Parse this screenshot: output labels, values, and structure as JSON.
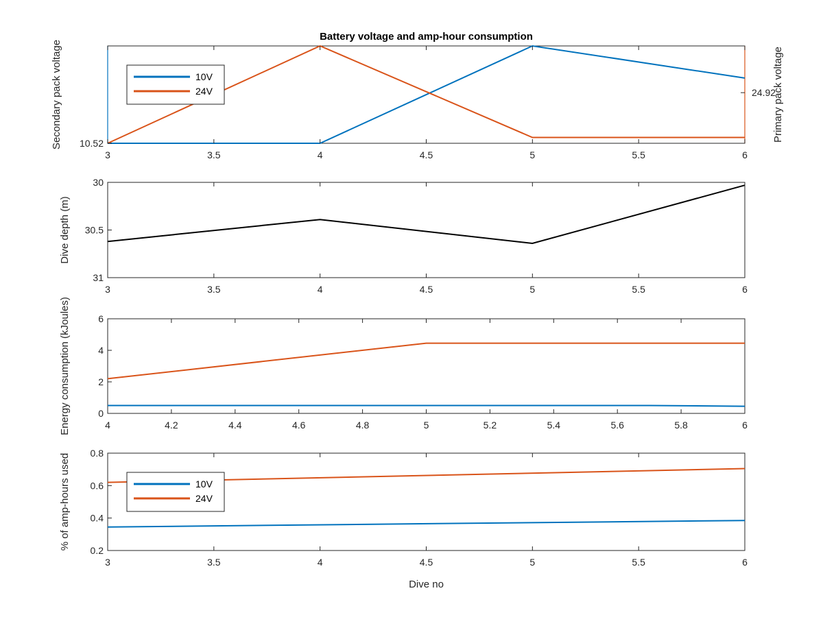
{
  "chart_data": [
    {
      "type": "line",
      "title": "Battery voltage and amp-hour consumption",
      "ylabel_left": "Secondary pack voltage",
      "ylabel_right": "Primary pack voltage",
      "xlim": [
        3,
        6
      ],
      "xticks": [
        3,
        3.5,
        4,
        4.5,
        5,
        5.5,
        6
      ],
      "xtick_labels": [
        "3",
        "3.5",
        "4",
        "4.5",
        "5",
        "5.5",
        "6"
      ],
      "ylim_left": [
        0,
        1
      ],
      "yticks_left": [
        0
      ],
      "ytick_labels_left": [
        "10.52"
      ],
      "ylim_right": [
        0,
        1
      ],
      "yticks_right": [
        0.52
      ],
      "ytick_labels_right": [
        "24.92"
      ],
      "grid": true,
      "legend": {
        "placement": "top-left",
        "entries": [
          "10V",
          "24V"
        ]
      },
      "colors": {
        "left_axis": "#0072BD",
        "right_axis": "#D95319"
      },
      "series": [
        {
          "name": "10V",
          "axis": "left",
          "color": "#0072BD",
          "x": [
            3,
            4,
            5,
            6
          ],
          "y": [
            0,
            0,
            1,
            0.67
          ]
        },
        {
          "name": "24V",
          "axis": "right",
          "color": "#D95319",
          "x": [
            3,
            4,
            5,
            6
          ],
          "y": [
            0,
            1,
            0.06,
            0.06
          ]
        }
      ]
    },
    {
      "type": "line",
      "ylabel": "Dive depth (m)",
      "xlim": [
        3,
        6
      ],
      "xticks": [
        3,
        3.5,
        4,
        4.5,
        5,
        5.5,
        6
      ],
      "xtick_labels": [
        "3",
        "3.5",
        "4",
        "4.5",
        "5",
        "5.5",
        "6"
      ],
      "ylim": [
        30,
        31
      ],
      "y_reversed": true,
      "yticks": [
        30,
        30.5,
        31
      ],
      "ytick_labels": [
        "30",
        "30.5",
        "31"
      ],
      "grid": true,
      "series": [
        {
          "color": "#000000",
          "x": [
            3,
            4,
            5,
            6
          ],
          "y": [
            30.62,
            30.39,
            30.64,
            30.03
          ]
        }
      ]
    },
    {
      "type": "line",
      "ylabel": "Energy consumption (kJoules)",
      "xlim": [
        4,
        6
      ],
      "xticks": [
        4,
        4.2,
        4.4,
        4.6,
        4.8,
        5,
        5.2,
        5.4,
        5.6,
        5.8,
        6
      ],
      "xtick_labels": [
        "4",
        "4.2",
        "4.4",
        "4.6",
        "4.8",
        "5",
        "5.2",
        "5.4",
        "5.6",
        "5.8",
        "6"
      ],
      "ylim": [
        0,
        6
      ],
      "yticks": [
        0,
        2,
        4,
        6
      ],
      "ytick_labels": [
        "0",
        "2",
        "4",
        "6"
      ],
      "grid": true,
      "series": [
        {
          "color": "#D95319",
          "x": [
            4,
            5,
            6
          ],
          "y": [
            2.2,
            4.45,
            4.45
          ]
        },
        {
          "color": "#0072BD",
          "x": [
            4,
            5.7,
            6
          ],
          "y": [
            0.5,
            0.5,
            0.45
          ]
        }
      ]
    },
    {
      "type": "line",
      "ylabel": "% of amp-hours used",
      "xlabel": "Dive no",
      "xlim": [
        3,
        6
      ],
      "xticks": [
        3,
        3.5,
        4,
        4.5,
        5,
        5.5,
        6
      ],
      "xtick_labels": [
        "3",
        "3.5",
        "4",
        "4.5",
        "5",
        "5.5",
        "6"
      ],
      "ylim": [
        0.2,
        0.8
      ],
      "yticks": [
        0.2,
        0.4,
        0.6,
        0.8
      ],
      "ytick_labels": [
        "0.2",
        "0.4",
        "0.6",
        "0.8"
      ],
      "grid": true,
      "legend": {
        "placement": "top-left",
        "entries": [
          "10V",
          "24V"
        ]
      },
      "series": [
        {
          "name": "10V",
          "color": "#0072BD",
          "x": [
            3,
            6
          ],
          "y": [
            0.345,
            0.385
          ]
        },
        {
          "name": "24V",
          "color": "#D95319",
          "x": [
            3,
            6
          ],
          "y": [
            0.62,
            0.705
          ]
        }
      ]
    }
  ]
}
